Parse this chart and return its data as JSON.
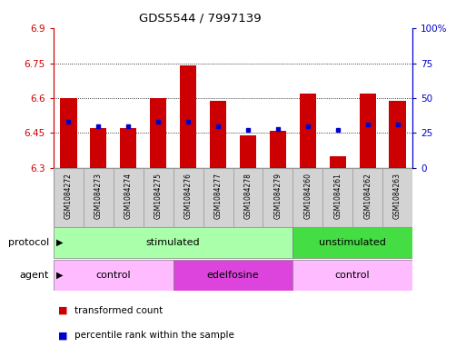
{
  "title": "GDS5544 / 7997139",
  "samples": [
    "GSM1084272",
    "GSM1084273",
    "GSM1084274",
    "GSM1084275",
    "GSM1084276",
    "GSM1084277",
    "GSM1084278",
    "GSM1084279",
    "GSM1084260",
    "GSM1084261",
    "GSM1084262",
    "GSM1084263"
  ],
  "red_values": [
    6.6,
    6.47,
    6.47,
    6.6,
    6.74,
    6.59,
    6.44,
    6.46,
    6.62,
    6.35,
    6.62,
    6.59
  ],
  "blue_values": [
    33,
    30,
    30,
    33,
    33,
    30,
    27,
    28,
    30,
    27,
    31,
    31
  ],
  "y_min": 6.3,
  "y_max": 6.9,
  "y_ticks": [
    6.3,
    6.45,
    6.6,
    6.75,
    6.9
  ],
  "y_tick_labels": [
    "6.3",
    "6.45",
    "6.6",
    "6.75",
    "6.9"
  ],
  "y2_ticks": [
    0,
    25,
    50,
    75,
    100
  ],
  "y2_tick_labels": [
    "0",
    "25",
    "50",
    "75",
    "100%"
  ],
  "left_axis_color": "#cc0000",
  "right_axis_color": "#0000cc",
  "bar_color": "#cc0000",
  "dot_color": "#0000cc",
  "sample_box_color": "#d3d3d3",
  "protocol_groups": [
    {
      "label": "stimulated",
      "start": 0,
      "end": 8,
      "color": "#aaffaa"
    },
    {
      "label": "unstimulated",
      "start": 8,
      "end": 12,
      "color": "#44dd44"
    }
  ],
  "agent_groups": [
    {
      "label": "control",
      "start": 0,
      "end": 4,
      "color": "#ffbbff"
    },
    {
      "label": "edelfosine",
      "start": 4,
      "end": 8,
      "color": "#dd44dd"
    },
    {
      "label": "control",
      "start": 8,
      "end": 12,
      "color": "#ffbbff"
    }
  ],
  "legend_items": [
    {
      "label": "transformed count",
      "color": "#cc0000"
    },
    {
      "label": "percentile rank within the sample",
      "color": "#0000cc"
    }
  ],
  "fig_width": 5.13,
  "fig_height": 3.93,
  "dpi": 100
}
